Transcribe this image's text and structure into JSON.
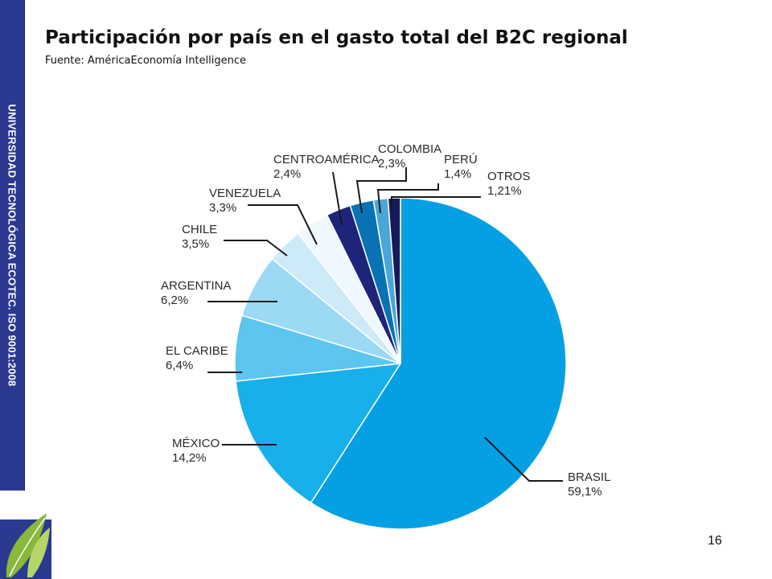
{
  "side_banner": {
    "text": "UNIVERSIDAD TECNOLÓGICA ECOTEC. ISO 9001:2008"
  },
  "header": {
    "title": "Participación por país en el gasto total del B2C regional",
    "subtitle": "Fuente: AméricaEconomía Intelligence"
  },
  "footer": {
    "page_number": "16"
  },
  "colors": {
    "brand_band": "#2b3990",
    "logo_green": "#8ab83a",
    "slice_outline": "#ffffff",
    "leader_line": "#1a1a1a"
  },
  "chart_data": {
    "type": "pie",
    "start_angle_deg": 90,
    "direction": "clockwise",
    "slices": [
      {
        "name": "BRASIL",
        "label": "59,1%",
        "value": 59.1,
        "color": "#05a0e4"
      },
      {
        "name": "MÉXICO",
        "label": "14,2%",
        "value": 14.2,
        "color": "#18b0ea"
      },
      {
        "name": "EL CARIBE",
        "label": "6,4%",
        "value": 6.4,
        "color": "#5cc5f0"
      },
      {
        "name": "ARGENTINA",
        "label": "6,2%",
        "value": 6.2,
        "color": "#9bd9f5"
      },
      {
        "name": "CHILE",
        "label": "3,5%",
        "value": 3.5,
        "color": "#cdeaf8"
      },
      {
        "name": "VENEZUELA",
        "label": "3,3%",
        "value": 3.3,
        "color": "#eef8fd"
      },
      {
        "name": "CENTROAMÉRICA",
        "label": "2,4%",
        "value": 2.4,
        "color": "#1d2479"
      },
      {
        "name": "COLOMBIA",
        "label": "2,3%",
        "value": 2.3,
        "color": "#0872b4"
      },
      {
        "name": "PERÚ",
        "label": "1,4%",
        "value": 1.4,
        "color": "#4aa6d8"
      },
      {
        "name": "OTROS",
        "label": "1,21%",
        "value": 1.21,
        "color": "#161a5a"
      }
    ]
  }
}
